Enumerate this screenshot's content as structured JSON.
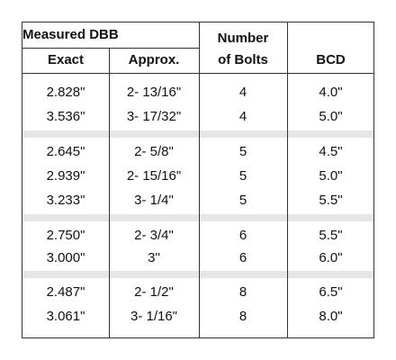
{
  "header": {
    "group_title": "Measured DBB",
    "exact_label": "Exact",
    "approx_label": "Approx.",
    "bolts_line1": "Number",
    "bolts_line2": "of Bolts",
    "bcd_label": "BCD"
  },
  "groups": [
    {
      "rows": [
        {
          "exact": "2.828\"",
          "approx": "2- 13/16\"",
          "bolts": "4",
          "bcd": "4.0\""
        },
        {
          "exact": "3.536\"",
          "approx": "3- 17/32\"",
          "bolts": "4",
          "bcd": "5.0\""
        }
      ]
    },
    {
      "rows": [
        {
          "exact": "2.645\"",
          "approx": "2- 5/8\"",
          "bolts": "5",
          "bcd": "4.5\""
        },
        {
          "exact": "2.939\"",
          "approx": "2- 15/16\"",
          "bolts": "5",
          "bcd": "5.0\""
        },
        {
          "exact": "3.233\"",
          "approx": "3- 1/4\"",
          "bolts": "5",
          "bcd": "5.5\""
        }
      ]
    },
    {
      "rows": [
        {
          "exact": "2.750\"",
          "approx": "2- 3/4\"",
          "bolts": "6",
          "bcd": "5.5\""
        },
        {
          "exact": "3.000\"",
          "approx": "3\"",
          "bolts": "6",
          "bcd": "6.0\""
        }
      ]
    },
    {
      "rows": [
        {
          "exact": "2.487\"",
          "approx": "2- 1/2\"",
          "bolts": "8",
          "bcd": "6.5\""
        },
        {
          "exact": "3.061\"",
          "approx": "3- 1/16\"",
          "bolts": "8",
          "bcd": "8.0\""
        }
      ]
    }
  ],
  "colors": {
    "border": "#333333",
    "band": "#e6e6e6",
    "text": "#111111"
  }
}
